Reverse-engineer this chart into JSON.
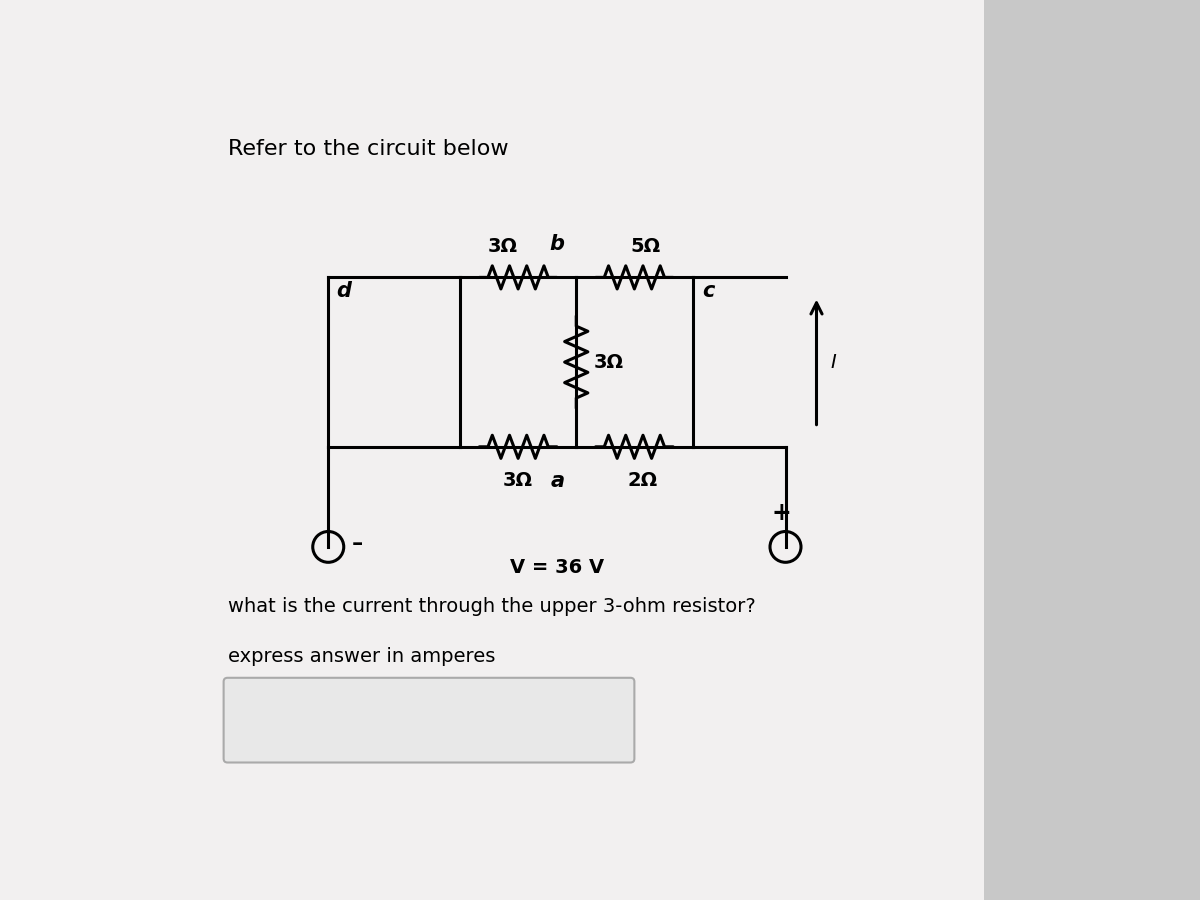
{
  "title": "Refer to the circuit below",
  "question": "what is the current through the upper 3-ohm resistor?",
  "instruction": "express answer in amperes",
  "bg_color": "#c8c8c8",
  "panel_color": "#f0eeee",
  "text_color": "#000000",
  "voltage_label": "V = 36 V",
  "current_label": "I",
  "node_a": "a",
  "node_b": "b",
  "node_c": "c",
  "node_d": "d",
  "r_upper_left": "3Ω",
  "r_upper_right": "5Ω",
  "r_middle": "3Ω",
  "r_lower_left": "3Ω",
  "r_lower_right": "2Ω"
}
